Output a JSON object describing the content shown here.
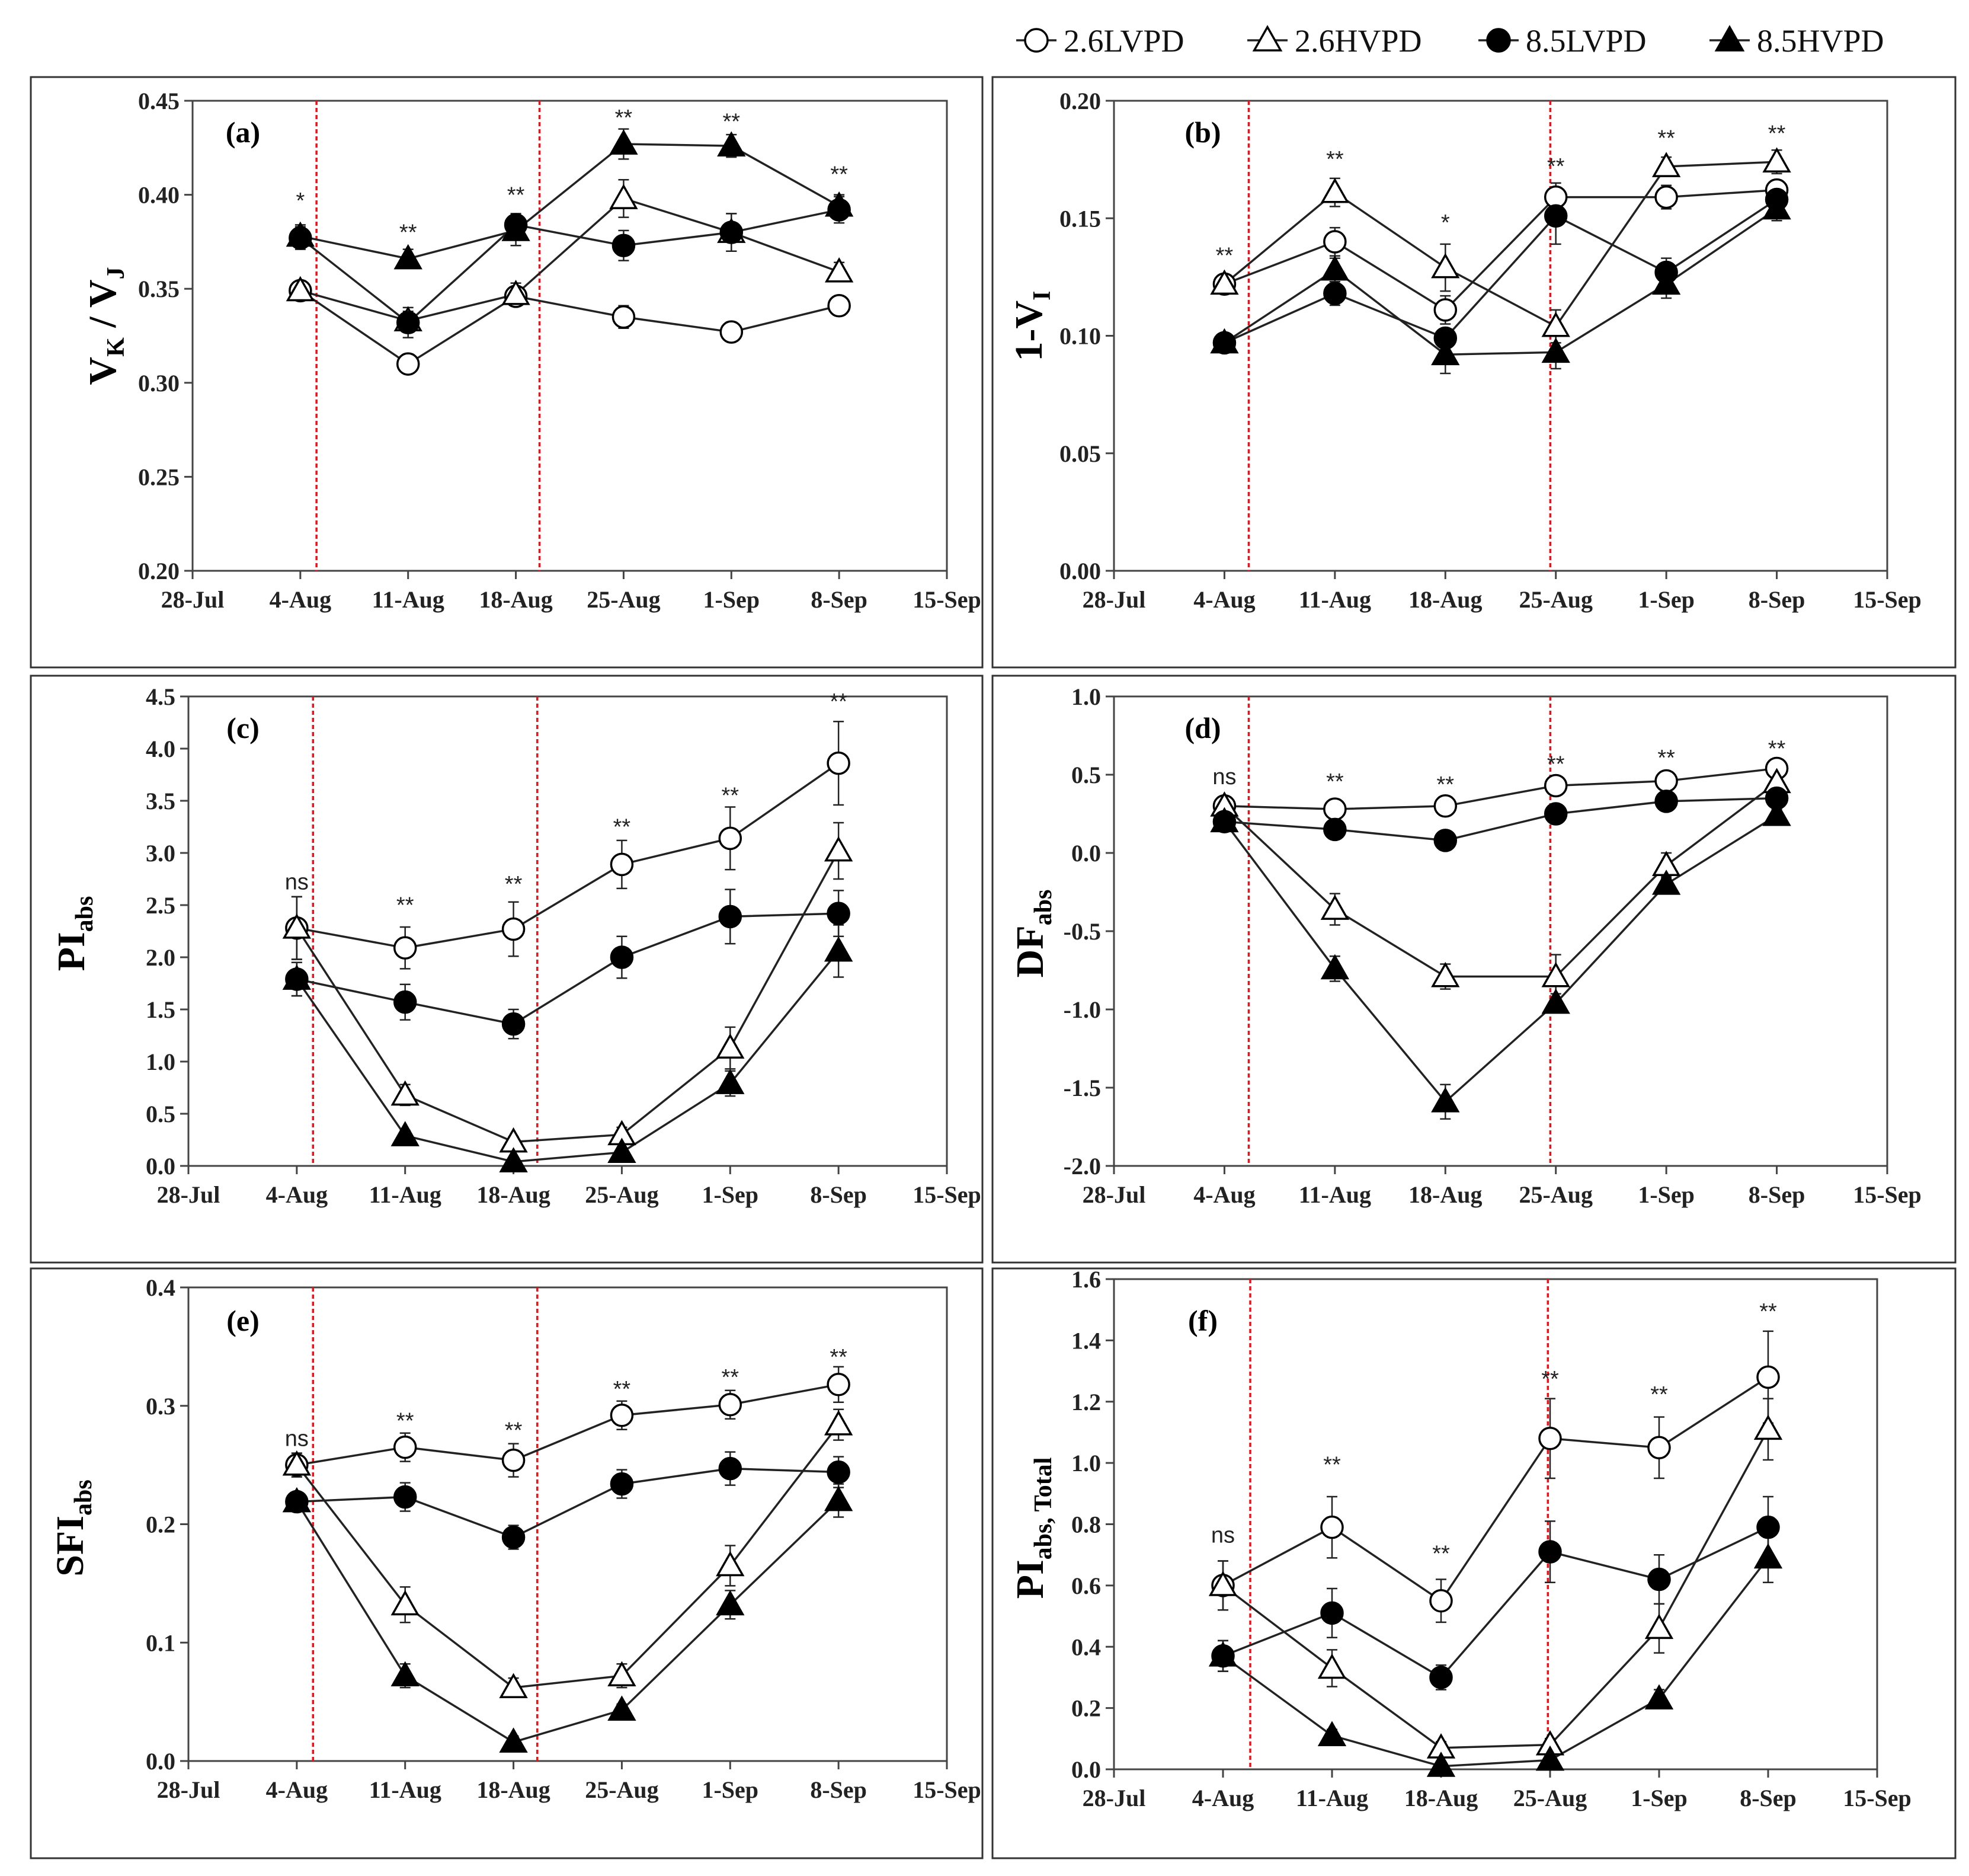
{
  "legend": {
    "items": [
      {
        "name": "2.6LVPD",
        "marker": "circle-open"
      },
      {
        "name": "2.6HVPD",
        "marker": "triangle-open"
      },
      {
        "name": "8.5LVPD",
        "marker": "circle-filled"
      },
      {
        "name": "8.5HVPD",
        "marker": "triangle-filled"
      }
    ]
  },
  "colors": {
    "line": "#222222",
    "dashed_line": "#e8141c",
    "frame": "#333333"
  },
  "chart_data": [
    {
      "type": "line",
      "panel": "(a)",
      "ylabel_main": "V",
      "ylabel_sub1": "K",
      "ylabel_mid": " / V",
      "ylabel_sub2": "J",
      "ylim": [
        0.2,
        0.45
      ],
      "yticks": [
        0.2,
        0.25,
        0.3,
        0.35,
        0.4,
        0.45
      ],
      "ytick_labels": [
        "0.20",
        "0.25",
        "0.30",
        "0.35",
        "0.40",
        "0.45"
      ],
      "xtick_labels": [
        "28-Jul",
        "4-Aug",
        "11-Aug",
        "18-Aug",
        "25-Aug",
        "1-Sep",
        "8-Sep",
        "15-Sep"
      ],
      "x": [
        1,
        2,
        3,
        4,
        5,
        6
      ],
      "vlines": [
        1.15,
        3.22
      ],
      "significance": [
        {
          "x": 1,
          "label": "*",
          "y": 0.393
        },
        {
          "x": 2,
          "label": "**",
          "y": 0.376
        },
        {
          "x": 3,
          "label": "**",
          "y": 0.396
        },
        {
          "x": 4,
          "label": "**",
          "y": 0.437
        },
        {
          "x": 5,
          "label": "**",
          "y": 0.435
        },
        {
          "x": 6,
          "label": "**",
          "y": 0.407
        }
      ],
      "series": [
        {
          "name": "2.6LVPD",
          "values": [
            0.349,
            0.31,
            0.346,
            0.335,
            0.327,
            0.341
          ],
          "errors": [
            0.004,
            0.005,
            0.004,
            0.006,
            0.004,
            0.004
          ]
        },
        {
          "name": "2.6HVPD",
          "values": [
            0.349,
            0.333,
            0.347,
            0.398,
            0.38,
            0.359
          ],
          "errors": [
            0.004,
            0.005,
            0.006,
            0.01,
            0.01,
            0.005
          ]
        },
        {
          "name": "8.5LVPD",
          "values": [
            0.377,
            0.332,
            0.384,
            0.373,
            0.38,
            0.392
          ],
          "errors": [
            0.006,
            0.008,
            0.006,
            0.008,
            0.01,
            0.007
          ]
        },
        {
          "name": "8.5HVPD",
          "values": [
            0.378,
            0.366,
            0.381,
            0.427,
            0.426,
            0.394
          ],
          "errors": [
            0.006,
            0.005,
            0.008,
            0.008,
            0.006,
            0.006
          ]
        }
      ]
    },
    {
      "type": "line",
      "panel": "(b)",
      "ylabel_main": "1-V",
      "ylabel_sub1": "I",
      "ylabel_mid": "",
      "ylabel_sub2": "",
      "ylim": [
        0.0,
        0.2
      ],
      "yticks": [
        0.0,
        0.05,
        0.1,
        0.15,
        0.2
      ],
      "ytick_labels": [
        "0.00",
        "0.05",
        "0.10",
        "0.15",
        "0.20"
      ],
      "xtick_labels": [
        "28-Jul",
        "4-Aug",
        "11-Aug",
        "18-Aug",
        "25-Aug",
        "1-Sep",
        "8-Sep",
        "15-Sep"
      ],
      "x": [
        1,
        2,
        3,
        4,
        5,
        6
      ],
      "vlines": [
        1.22,
        3.95
      ],
      "significance": [
        {
          "x": 1,
          "label": "**",
          "y": 0.131
        },
        {
          "x": 2,
          "label": "**",
          "y": 0.172
        },
        {
          "x": 3,
          "label": "*",
          "y": 0.145
        },
        {
          "x": 4,
          "label": "**",
          "y": 0.169
        },
        {
          "x": 5,
          "label": "**",
          "y": 0.181
        },
        {
          "x": 6,
          "label": "**",
          "y": 0.183
        }
      ],
      "series": [
        {
          "name": "2.6LVPD",
          "values": [
            0.122,
            0.14,
            0.111,
            0.159,
            0.159,
            0.162
          ],
          "errors": [
            0.004,
            0.006,
            0.006,
            0.006,
            0.005,
            0.004
          ]
        },
        {
          "name": "2.6HVPD",
          "values": [
            0.122,
            0.161,
            0.129,
            0.104,
            0.172,
            0.174
          ],
          "errors": [
            0.004,
            0.006,
            0.01,
            0.007,
            0.004,
            0.005
          ]
        },
        {
          "name": "8.5LVPD",
          "values": [
            0.097,
            0.118,
            0.099,
            0.151,
            0.127,
            0.158
          ],
          "errors": [
            0.003,
            0.005,
            0.004,
            0.012,
            0.006,
            0.005
          ]
        },
        {
          "name": "8.5HVPD",
          "values": [
            0.097,
            0.128,
            0.092,
            0.093,
            0.122,
            0.154
          ],
          "errors": [
            0.003,
            0.005,
            0.008,
            0.007,
            0.006,
            0.005
          ]
        }
      ]
    },
    {
      "type": "line",
      "panel": "(c)",
      "ylabel_main": "PI",
      "ylabel_sub1": "abs",
      "ylabel_mid": "",
      "ylabel_sub2": "",
      "ylim": [
        0.0,
        4.5
      ],
      "yticks": [
        0.0,
        0.5,
        1.0,
        1.5,
        2.0,
        2.5,
        3.0,
        3.5,
        4.0,
        4.5
      ],
      "ytick_labels": [
        "0.0",
        "0.5",
        "1.0",
        "1.5",
        "2.0",
        "2.5",
        "3.0",
        "3.5",
        "4.0",
        "4.5"
      ],
      "xtick_labels": [
        "28-Jul",
        "4-Aug",
        "11-Aug",
        "18-Aug",
        "25-Aug",
        "1-Sep",
        "8-Sep",
        "15-Sep"
      ],
      "x": [
        1,
        2,
        3,
        4,
        5,
        6
      ],
      "vlines": [
        1.15,
        3.22
      ],
      "significance": [
        {
          "x": 1,
          "label": "ns",
          "y": 2.65
        },
        {
          "x": 2,
          "label": "**",
          "y": 2.43
        },
        {
          "x": 3,
          "label": "**",
          "y": 2.63
        },
        {
          "x": 4,
          "label": "**",
          "y": 3.18
        },
        {
          "x": 5,
          "label": "**",
          "y": 3.48
        },
        {
          "x": 6,
          "label": "**",
          "y": 4.38
        }
      ],
      "series": [
        {
          "name": "2.6LVPD",
          "values": [
            2.28,
            2.09,
            2.27,
            2.89,
            3.14,
            3.86
          ],
          "errors": [
            0.3,
            0.2,
            0.26,
            0.23,
            0.3,
            0.4
          ]
        },
        {
          "name": "2.6HVPD",
          "values": [
            2.28,
            0.68,
            0.23,
            0.3,
            1.13,
            3.02
          ],
          "errors": [
            0.3,
            0.1,
            0.05,
            0.07,
            0.2,
            0.27
          ]
        },
        {
          "name": "8.5LVPD",
          "values": [
            1.79,
            1.57,
            1.36,
            2.0,
            2.39,
            2.42
          ],
          "errors": [
            0.16,
            0.17,
            0.14,
            0.2,
            0.26,
            0.22
          ]
        },
        {
          "name": "8.5HVPD",
          "values": [
            1.79,
            0.29,
            0.04,
            0.13,
            0.79,
            2.06
          ],
          "errors": [
            0.16,
            0.05,
            0.03,
            0.04,
            0.12,
            0.25
          ]
        }
      ]
    },
    {
      "type": "line",
      "panel": "(d)",
      "ylabel_main": "DF",
      "ylabel_sub1": "abs",
      "ylabel_mid": "",
      "ylabel_sub2": "",
      "ylim": [
        -2.0,
        1.0
      ],
      "yticks": [
        -2.0,
        -1.5,
        -1.0,
        -0.5,
        0.0,
        0.5,
        1.0
      ],
      "ytick_labels": [
        "-2.0",
        "-1.5",
        "-1.0",
        "-0.5",
        "0.0",
        "0.5",
        "1.0"
      ],
      "xtick_labels": [
        "28-Jul",
        "4-Aug",
        "11-Aug",
        "18-Aug",
        "25-Aug",
        "1-Sep",
        "8-Sep",
        "15-Sep"
      ],
      "x": [
        1,
        2,
        3,
        4,
        5,
        6
      ],
      "vlines": [
        1.22,
        3.95
      ],
      "significance": [
        {
          "x": 1,
          "label": "ns",
          "y": 0.44
        },
        {
          "x": 2,
          "label": "**",
          "y": 0.41
        },
        {
          "x": 3,
          "label": "**",
          "y": 0.39
        },
        {
          "x": 4,
          "label": "**",
          "y": 0.52
        },
        {
          "x": 5,
          "label": "**",
          "y": 0.56
        },
        {
          "x": 6,
          "label": "**",
          "y": 0.62
        }
      ],
      "series": [
        {
          "name": "2.6LVPD",
          "values": [
            0.3,
            0.28,
            0.3,
            0.43,
            0.46,
            0.54
          ],
          "errors": [
            0.03,
            0.03,
            0.03,
            0.03,
            0.03,
            0.03
          ]
        },
        {
          "name": "2.6HVPD",
          "values": [
            0.3,
            -0.36,
            -0.79,
            -0.79,
            -0.08,
            0.45
          ],
          "errors": [
            0.03,
            0.1,
            0.08,
            0.14,
            0.08,
            0.05
          ]
        },
        {
          "name": "8.5LVPD",
          "values": [
            0.2,
            0.15,
            0.08,
            0.25,
            0.33,
            0.35
          ],
          "errors": [
            0.03,
            0.03,
            0.03,
            0.03,
            0.03,
            0.03
          ]
        },
        {
          "name": "8.5HVPD",
          "values": [
            0.2,
            -0.74,
            -1.59,
            -0.96,
            -0.2,
            0.24
          ],
          "errors": [
            0.03,
            0.08,
            0.11,
            0.06,
            0.05,
            0.04
          ]
        }
      ]
    },
    {
      "type": "line",
      "panel": "(e)",
      "ylabel_main": "SFI",
      "ylabel_sub1": "abs",
      "ylabel_mid": "",
      "ylabel_sub2": "",
      "ylim": [
        0.0,
        0.4
      ],
      "yticks": [
        0.0,
        0.1,
        0.2,
        0.3,
        0.4
      ],
      "ytick_labels": [
        "0.0",
        "0.1",
        "0.2",
        "0.3",
        "0.4"
      ],
      "xtick_labels": [
        "28-Jul",
        "4-Aug",
        "11-Aug",
        "18-Aug",
        "25-Aug",
        "1-Sep",
        "8-Sep",
        "15-Sep"
      ],
      "x": [
        1,
        2,
        3,
        4,
        5,
        6
      ],
      "vlines": [
        1.15,
        3.22
      ],
      "significance": [
        {
          "x": 1,
          "label": "ns",
          "y": 0.266
        },
        {
          "x": 2,
          "label": "**",
          "y": 0.281
        },
        {
          "x": 3,
          "label": "**",
          "y": 0.273
        },
        {
          "x": 4,
          "label": "**",
          "y": 0.308
        },
        {
          "x": 5,
          "label": "**",
          "y": 0.318
        },
        {
          "x": 6,
          "label": "**",
          "y": 0.335
        }
      ],
      "series": [
        {
          "name": "2.6LVPD",
          "values": [
            0.25,
            0.265,
            0.254,
            0.292,
            0.301,
            0.318
          ],
          "errors": [
            0.01,
            0.012,
            0.014,
            0.012,
            0.012,
            0.015
          ]
        },
        {
          "name": "2.6HVPD",
          "values": [
            0.25,
            0.132,
            0.062,
            0.072,
            0.165,
            0.284
          ],
          "errors": [
            0.01,
            0.015,
            0.008,
            0.01,
            0.017,
            0.013
          ]
        },
        {
          "name": "8.5LVPD",
          "values": [
            0.219,
            0.223,
            0.189,
            0.234,
            0.247,
            0.244
          ],
          "errors": [
            0.008,
            0.012,
            0.01,
            0.012,
            0.014,
            0.013
          ]
        },
        {
          "name": "8.5HVPD",
          "values": [
            0.219,
            0.072,
            0.016,
            0.043,
            0.132,
            0.22
          ],
          "errors": [
            0.008,
            0.01,
            0.005,
            0.005,
            0.012,
            0.014
          ]
        }
      ]
    },
    {
      "type": "line",
      "panel": "(f)",
      "ylabel_main": "PI",
      "ylabel_sub1": "abs, Total",
      "ylabel_mid": "",
      "ylabel_sub2": "",
      "ylim": [
        0.0,
        1.6
      ],
      "yticks": [
        0.0,
        0.2,
        0.4,
        0.6,
        0.8,
        1.0,
        1.2,
        1.4,
        1.6
      ],
      "ytick_labels": [
        "0.0",
        "0.2",
        "0.4",
        "0.6",
        "0.8",
        "1.0",
        "1.2",
        "1.4",
        "1.6"
      ],
      "xtick_labels": [
        "28-Jul",
        "4-Aug",
        "11-Aug",
        "18-Aug",
        "25-Aug",
        "1-Sep",
        "8-Sep",
        "15-Sep"
      ],
      "x": [
        1,
        2,
        3,
        4,
        5,
        6
      ],
      "vlines": [
        1.25,
        3.98
      ],
      "significance": [
        {
          "x": 1,
          "label": "ns",
          "y": 0.74
        },
        {
          "x": 2,
          "label": "**",
          "y": 0.97
        },
        {
          "x": 3,
          "label": "**",
          "y": 0.68
        },
        {
          "x": 4,
          "label": "**",
          "y": 1.25
        },
        {
          "x": 5,
          "label": "**",
          "y": 1.2
        },
        {
          "x": 6,
          "label": "**",
          "y": 1.47
        }
      ],
      "series": [
        {
          "name": "2.6LVPD",
          "values": [
            0.6,
            0.79,
            0.55,
            1.08,
            1.05,
            1.28
          ],
          "errors": [
            0.08,
            0.1,
            0.07,
            0.13,
            0.1,
            0.15
          ]
        },
        {
          "name": "2.6HVPD",
          "values": [
            0.6,
            0.33,
            0.07,
            0.08,
            0.46,
            1.11
          ],
          "errors": [
            0.08,
            0.06,
            0.02,
            0.02,
            0.08,
            0.1
          ]
        },
        {
          "name": "8.5LVPD",
          "values": [
            0.37,
            0.51,
            0.3,
            0.71,
            0.62,
            0.79
          ],
          "errors": [
            0.05,
            0.08,
            0.04,
            0.1,
            0.08,
            0.1
          ]
        },
        {
          "name": "8.5HVPD",
          "values": [
            0.37,
            0.11,
            0.01,
            0.03,
            0.23,
            0.69
          ],
          "errors": [
            0.05,
            0.02,
            0.01,
            0.01,
            0.03,
            0.08
          ]
        }
      ]
    }
  ]
}
